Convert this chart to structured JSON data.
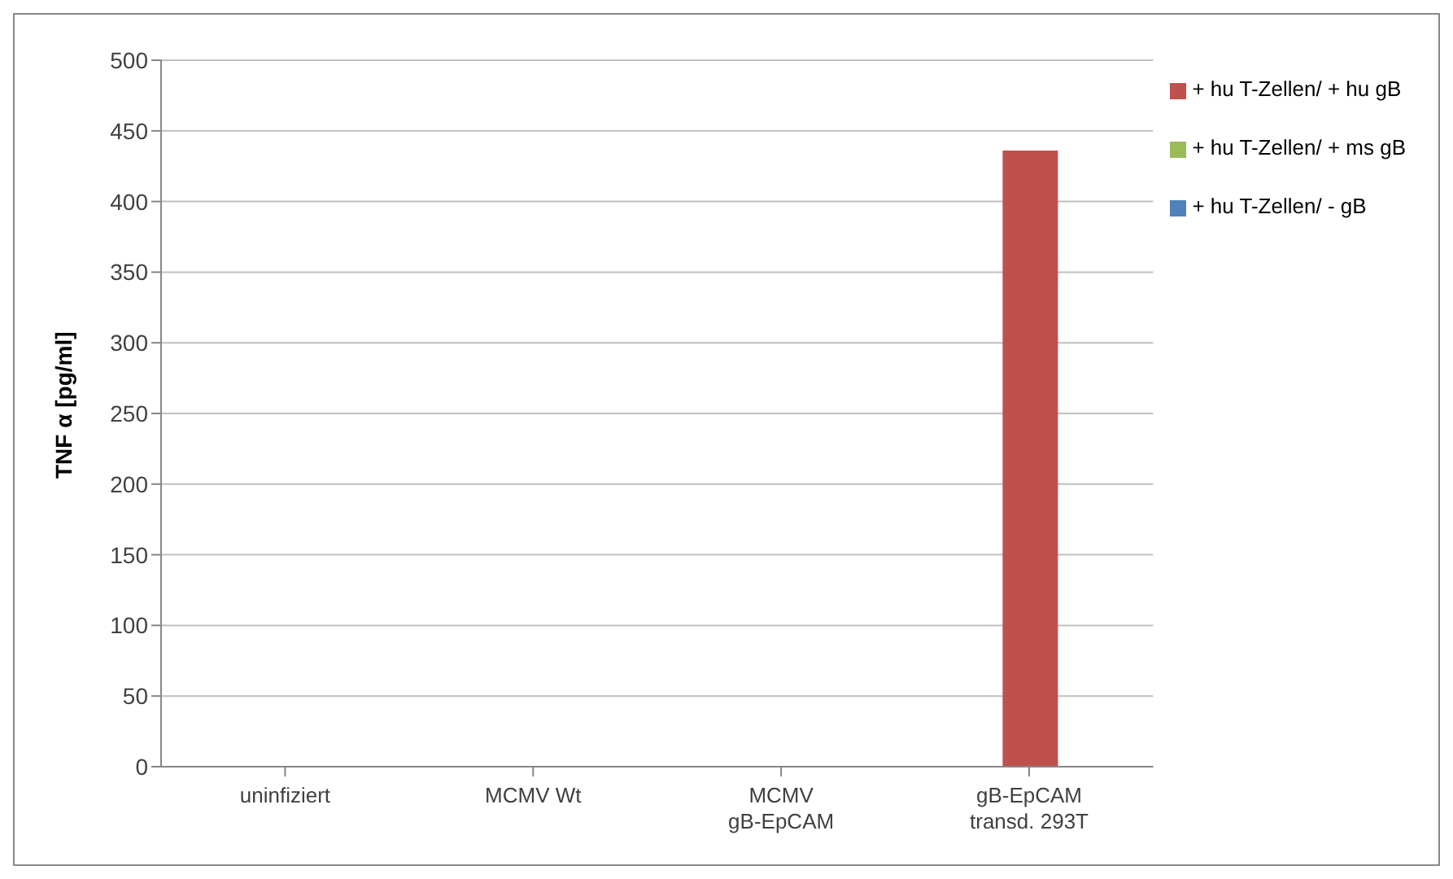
{
  "chart_data": {
    "type": "bar",
    "ylabel": "TNF α [pg/ml]",
    "categories": [
      "uninfiziert",
      "MCMV Wt",
      "MCMV gB-EpCAM",
      "gB-EpCAM transd. 293T"
    ],
    "series": [
      {
        "name": "+ hu T-Zellen/ - gB",
        "color": "#4f81bd",
        "values": [
          0,
          0,
          0,
          0
        ]
      },
      {
        "name": "+ hu T-Zellen/ + hu gB",
        "color": "#c0504d",
        "values": [
          0,
          0,
          0,
          436
        ]
      },
      {
        "name": "+ hu T-Zellen/ + ms gB",
        "color": "#9bbb59",
        "values": [
          0,
          0,
          0,
          0
        ]
      }
    ],
    "ylim": [
      0,
      500
    ],
    "yticks": [
      0,
      50,
      100,
      150,
      200,
      250,
      300,
      350,
      400,
      450,
      500
    ],
    "grid": "y",
    "legend": "right"
  }
}
